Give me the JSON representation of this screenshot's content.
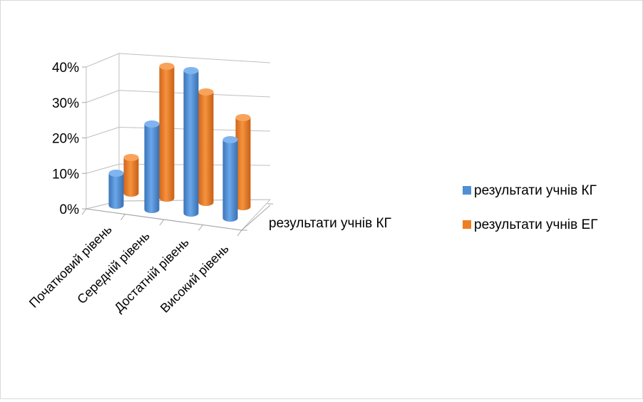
{
  "chart_data": {
    "type": "bar",
    "subtype": "3d-cylinder",
    "categories": [
      "Початковий рівень",
      "Середній рівень",
      "Достатній рівень",
      "Високий рівень"
    ],
    "series": [
      {
        "name": "результати учнів КГ",
        "values": [
          9,
          24,
          40,
          22
        ],
        "color": "#4f8fd6"
      },
      {
        "name": "результати учнів ЕГ",
        "values": [
          10,
          37,
          31,
          25
        ],
        "color": "#ef7d22"
      }
    ],
    "series_axis_label": "результати учнів КГ",
    "yticks": [
      "0%",
      "10%",
      "20%",
      "30%",
      "40%"
    ],
    "ylim": [
      0,
      40
    ],
    "grid": true,
    "legend": "right"
  }
}
